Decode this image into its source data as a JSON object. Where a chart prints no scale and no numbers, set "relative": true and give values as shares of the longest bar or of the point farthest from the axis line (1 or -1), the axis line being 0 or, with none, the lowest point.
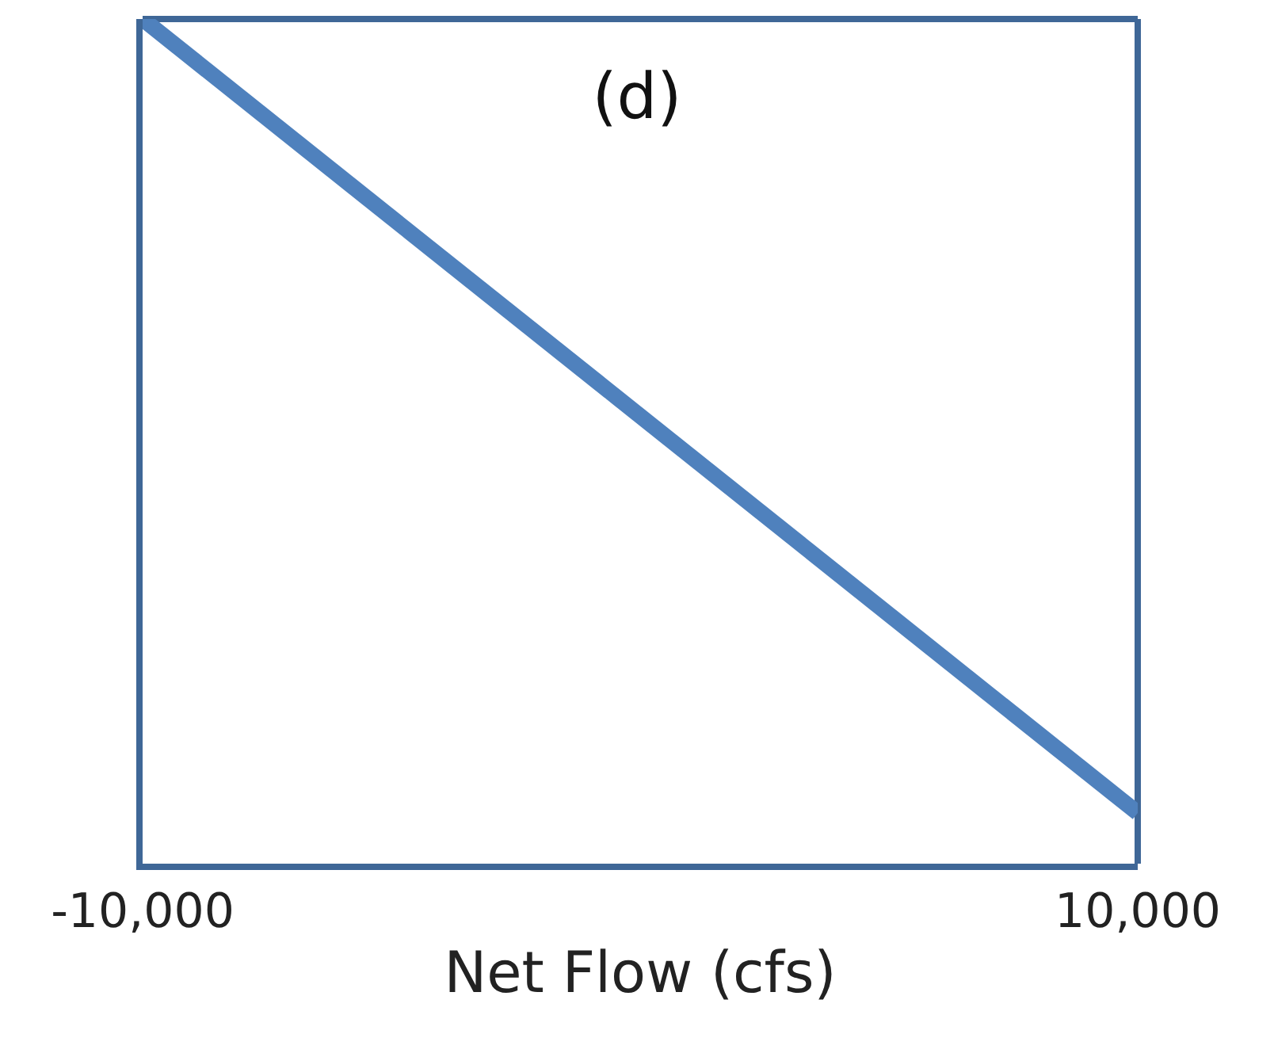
{
  "chart_data": {
    "type": "line",
    "title": "(d)",
    "xlabel": "Net Flow (cfs)",
    "relative": true,
    "x": [
      -10000,
      10000
    ],
    "series": [
      {
        "color": "#4f81bd",
        "values": [
          1,
          0.06
        ]
      }
    ],
    "xlim": [
      -10000,
      10000
    ],
    "xticks": [
      {
        "value": -10000,
        "label": "-10,000"
      },
      {
        "value": 10000,
        "label": "10,000"
      }
    ],
    "grid": false,
    "marker": "none",
    "line_style": "solid"
  }
}
